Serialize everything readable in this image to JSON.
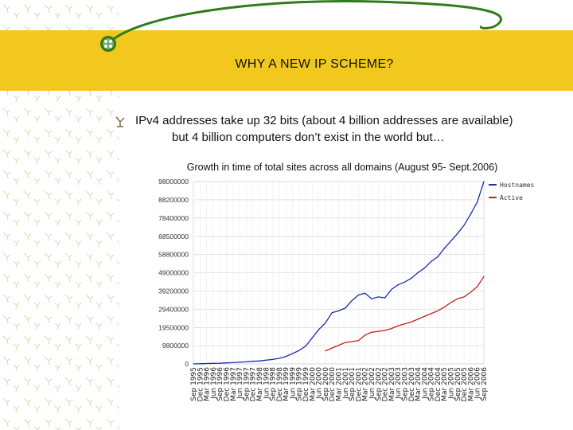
{
  "slide": {
    "title": "WHY A NEW IP SCHEME?",
    "bullet_line1": "IPv4 addresses take up 32 bits  (about 4 billion addresses are available)",
    "bullet_line2": "but 4 billion computers don’t exist in the world but…",
    "accent_color": "#f2c81e",
    "swoosh_color": "#2e7d1a"
  },
  "chart_data": {
    "type": "line",
    "title": "Growth in time of total sites across all domains (August 95- Sept.2006)",
    "xlabel": "",
    "ylabel": "",
    "ylim": [
      0,
      98000000
    ],
    "yticks": [
      0,
      9800000,
      19500000,
      29400000,
      39200000,
      49000000,
      58800000,
      68500000,
      78400000,
      88200000,
      98000000
    ],
    "ytick_labels": [
      "0",
      "9800000",
      "19500000",
      "29400000",
      "39200000",
      "49000000",
      "58800000",
      "68500000",
      "78400000",
      "88200000",
      "98000000"
    ],
    "categories": [
      "Sep 1995",
      "Dec 1995",
      "Mar 1996",
      "Jun 1996",
      "Sep 1996",
      "Dec 1996",
      "Mar 1997",
      "Jun 1997",
      "Sep 1997",
      "Dec 1997",
      "Mar 1998",
      "Jun 1998",
      "Sep 1998",
      "Dec 1998",
      "Mar 1999",
      "Jun 1999",
      "Sep 1999",
      "Dec 1999",
      "Mar 2000",
      "Jun 2000",
      "Sep 2000",
      "Dec 2000",
      "Mar 2001",
      "Jun 2001",
      "Sep 2001",
      "Dec 2001",
      "Mar 2002",
      "Jun 2002",
      "Sep 2002",
      "Dec 2002",
      "Mar 2003",
      "Jun 2003",
      "Sep 2003",
      "Dec 2003",
      "Mar 2004",
      "Jun 2004",
      "Sep 2004",
      "Dec 2004",
      "Mar 2005",
      "Jun 2005",
      "Sep 2005",
      "Dec 2005",
      "Mar 2006",
      "Jun 2006",
      "Sep 2006"
    ],
    "series": [
      {
        "name": "Hostnames",
        "color": "#1c2fa8",
        "values": [
          50000,
          100000,
          200000,
          300000,
          400000,
          550000,
          700000,
          900000,
          1100000,
          1400000,
          1600000,
          2000000,
          2400000,
          3000000,
          4000000,
          5500000,
          7200000,
          9500000,
          14000000,
          18500000,
          22000000,
          27500000,
          28500000,
          30000000,
          34000000,
          37000000,
          38000000,
          35000000,
          36000000,
          35500000,
          40000000,
          42500000,
          44000000,
          46000000,
          49000000,
          51500000,
          55000000,
          57500000,
          62000000,
          66000000,
          70000000,
          74500000,
          80500000,
          87000000,
          98000000
        ]
      },
      {
        "name": "Active",
        "color": "#c62020",
        "values": [
          null,
          null,
          null,
          null,
          null,
          null,
          null,
          null,
          null,
          null,
          null,
          null,
          null,
          null,
          null,
          null,
          null,
          null,
          null,
          null,
          7000000,
          8500000,
          10000000,
          11500000,
          12000000,
          12500000,
          15500000,
          17000000,
          17500000,
          18000000,
          19000000,
          20500000,
          21500000,
          22500000,
          24000000,
          25500000,
          27000000,
          28500000,
          30500000,
          33000000,
          35000000,
          36000000,
          38500000,
          41500000,
          47000000
        ]
      }
    ],
    "grid": true,
    "legend_position": "top-right"
  }
}
